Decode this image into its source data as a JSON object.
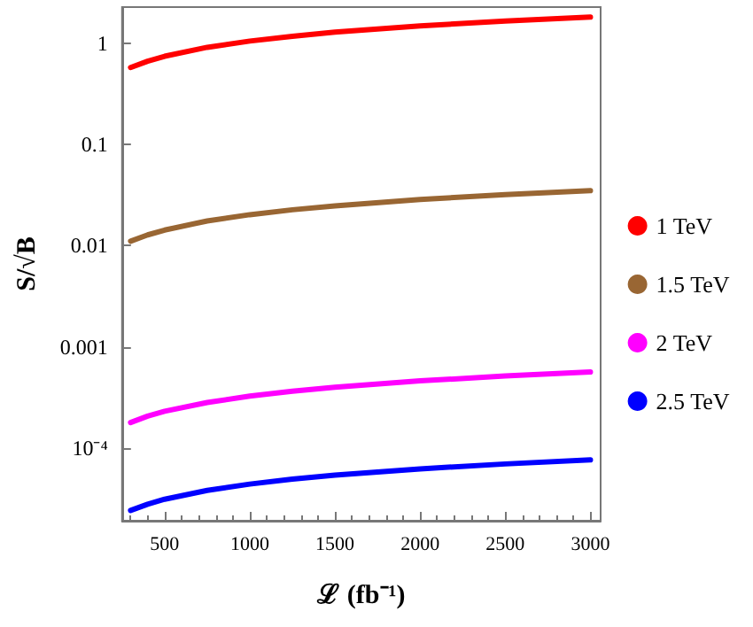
{
  "chart_data": {
    "type": "line",
    "xlabel": "ℒ (fb⁻¹)",
    "ylabel": "S/√B",
    "x": [
      300,
      400,
      500,
      750,
      1000,
      1250,
      1500,
      2000,
      2500,
      3000
    ],
    "series": [
      {
        "name": "1 TeV",
        "color": "#ff0000",
        "values": [
          0.58,
          0.67,
          0.75,
          0.92,
          1.06,
          1.18,
          1.3,
          1.5,
          1.67,
          1.83
        ]
      },
      {
        "name": "1.5 TeV",
        "color": "#996633",
        "values": [
          0.0111,
          0.0128,
          0.0143,
          0.0176,
          0.0203,
          0.0227,
          0.0248,
          0.0287,
          0.032,
          0.0351
        ]
      },
      {
        "name": "2 TeV",
        "color": "#ff00ff",
        "values": [
          0.000178,
          0.000206,
          0.00023,
          0.000281,
          0.000325,
          0.000363,
          0.000398,
          0.00046,
          0.000514,
          0.000563
        ]
      },
      {
        "name": "2.5 TeV",
        "color": "#0000ff",
        "values": [
          2.4e-05,
          2.77e-05,
          3.1e-05,
          3.79e-05,
          4.38e-05,
          4.9e-05,
          5.37e-05,
          6.2e-05,
          6.93e-05,
          7.59e-05
        ]
      }
    ],
    "log": "y",
    "xlim": [
      250,
      3060
    ],
    "xticks": [
      500,
      1000,
      1500,
      2000,
      2500,
      3000
    ],
    "ylim": [
      1.9e-05,
      2.3
    ],
    "yticks": [
      {
        "value": 0.0001,
        "label": "10⁻⁴"
      },
      0.001,
      0.01,
      0.1,
      1
    ],
    "grid": false,
    "legend": "right",
    "marker": "none",
    "line_style": "solid"
  }
}
